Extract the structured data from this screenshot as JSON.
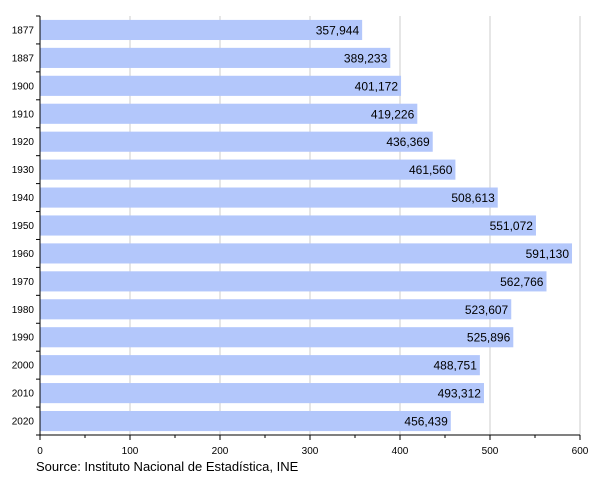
{
  "chart_data": {
    "type": "bar",
    "orientation": "horizontal",
    "categories": [
      "1877",
      "1887",
      "1900",
      "1910",
      "1920",
      "1930",
      "1940",
      "1950",
      "1960",
      "1970",
      "1980",
      "1990",
      "2000",
      "2010",
      "2020"
    ],
    "values": [
      357944,
      389233,
      401172,
      419226,
      436369,
      461560,
      508613,
      551072,
      591130,
      562766,
      523607,
      525896,
      488751,
      493312,
      456439
    ],
    "value_labels": [
      "357,944",
      "389,233",
      "401,172",
      "419,226",
      "436,369",
      "461,560",
      "508,613",
      "551,072",
      "591,130",
      "562,766",
      "523,607",
      "525,896",
      "488,751",
      "493,312",
      "456,439"
    ],
    "xlim": [
      0,
      600000
    ],
    "x_ticks": [
      0,
      100000,
      200000,
      300000,
      400000,
      500000,
      600000
    ],
    "x_tick_labels": [
      "0",
      "100",
      "200",
      "300",
      "400",
      "500",
      "600"
    ],
    "grid": true,
    "colors": {
      "bar": "#b3c7fb",
      "grid": "#cccccc",
      "axis": "#000000"
    }
  },
  "source": "Source: Instituto Nacional de Estadística, INE"
}
